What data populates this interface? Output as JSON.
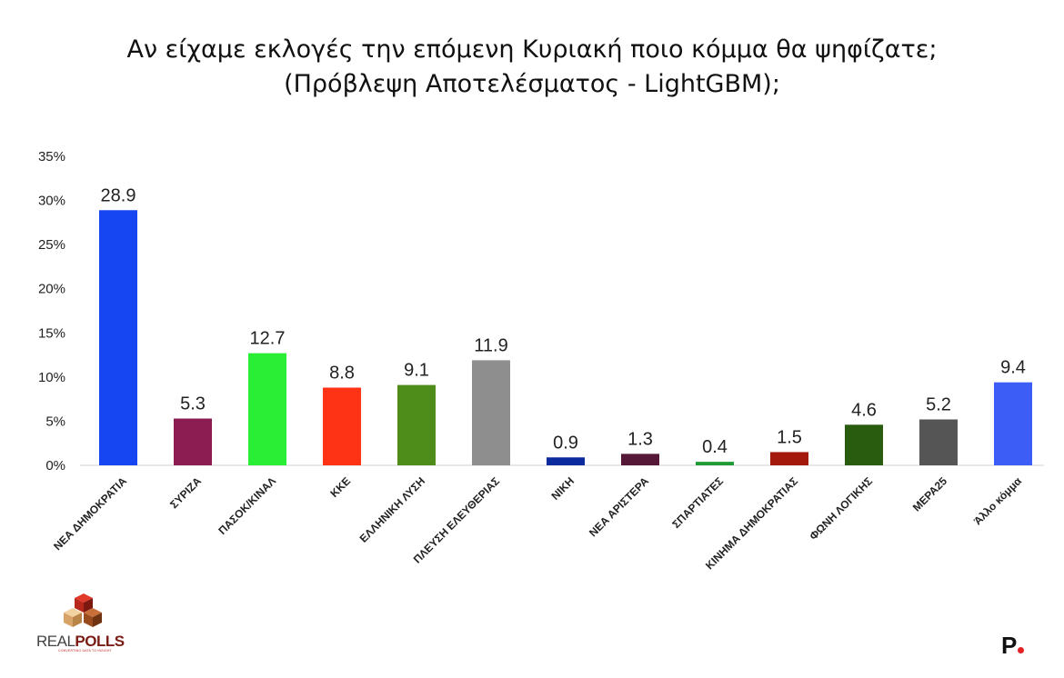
{
  "title": {
    "line1": "Αν είχαμε εκλογές την επόμενη Κυριακή ποιο κόμμα θα ψηφίζατε;",
    "line2": "(Πρόβλεψη Αποτελέσματος - LightGBM);"
  },
  "logo": {
    "part1": "REAL",
    "part2": "POLLS",
    "tagline": "CONVERTING DATA TO INSIGHT"
  },
  "brand_mark": "P",
  "chart_data": {
    "type": "bar",
    "title": "Αν είχαμε εκλογές την επόμενη Κυριακή ποιο κόμμα θα ψηφίζατε; (Πρόβλεψη Αποτελέσματος - LightGBM);",
    "categories": [
      "ΝΕΑ ΔΗΜΟΚΡΑΤΙΑ",
      "ΣΥΡΙΖΑ",
      "ΠΑΣΟΚ/ΚΙΝΑΛ",
      "ΚΚΕ",
      "ΕΛΛΗΝΙΚΗ ΛΥΣΗ",
      "ΠΛΕΥΣΗ ΕΛΕΥΘΕΡΙΑΣ",
      "ΝΙΚΗ",
      "ΝΕΑ ΑΡΙΣΤΕΡΑ",
      "ΣΠΑΡΤΙΑΤΕΣ",
      "ΚΙΝΗΜΑ ΔΗΜΟΚΡΑΤΙΑΣ",
      "ΦΩΝΗ ΛΟΓΙΚΗΣ",
      "ΜΕΡΑ25",
      "Άλλο κόμμα"
    ],
    "values": [
      28.9,
      5.3,
      12.7,
      8.8,
      9.1,
      11.9,
      0.9,
      1.3,
      0.4,
      1.5,
      4.6,
      5.2,
      9.4
    ],
    "value_labels": [
      "28.9",
      "5.3",
      "12.7",
      "8.8",
      "9.1",
      "11.9",
      "0.9",
      "1.3",
      "0.4",
      "1.5",
      "4.6",
      "5.2",
      "9.4"
    ],
    "colors": [
      "#1546f2",
      "#8b1d52",
      "#29ee35",
      "#fe3215",
      "#4e8d1a",
      "#8e8e8e",
      "#0b2a9e",
      "#551837",
      "#1f9a34",
      "#a31a0c",
      "#295c0e",
      "#555555",
      "#3c5ef7"
    ],
    "ylim": [
      0,
      35
    ],
    "yticks": [
      0,
      5,
      10,
      15,
      20,
      25,
      30,
      35
    ],
    "ytick_labels": [
      "0%",
      "5%",
      "10%",
      "15%",
      "20%",
      "25%",
      "30%",
      "35%"
    ],
    "grid": false,
    "legend": "none"
  }
}
